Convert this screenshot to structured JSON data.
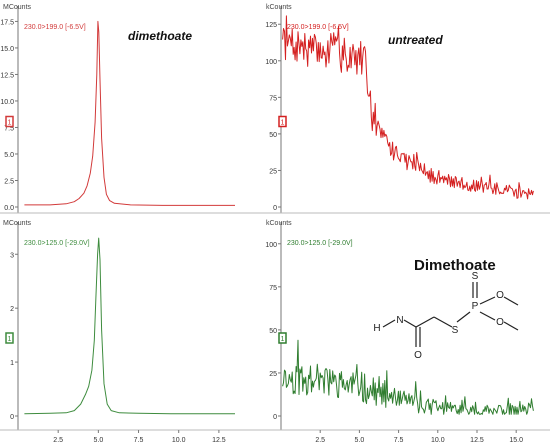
{
  "chart_data": [
    {
      "type": "line",
      "position": "top-left",
      "y_unit": "MCounts",
      "channel": "230.0>199.0 [-6.5V]",
      "marker": "1",
      "annotation": "dimethoate",
      "color": "#d23a3a",
      "xlim": [
        0,
        14
      ],
      "ylim": [
        0,
        18.2
      ],
      "x_ticks": [],
      "y_ticks": [
        0.0,
        2.5,
        5.0,
        7.5,
        10.0,
        12.5,
        15.0,
        17.5
      ],
      "y_tick_labels": [
        "0.0",
        "2.5",
        "5.0",
        "7.5",
        "10.0",
        "12.5",
        "15.0",
        "17.5"
      ],
      "x": [
        0.4,
        2.0,
        3.0,
        3.5,
        3.8,
        4.1,
        4.3,
        4.5,
        4.65,
        4.8,
        4.9,
        4.97,
        5.03,
        5.1,
        5.2,
        5.35,
        5.5,
        5.7,
        6.0,
        7.0,
        9.0,
        11.0,
        13.5
      ],
      "y": [
        0.2,
        0.2,
        0.3,
        0.5,
        0.8,
        1.3,
        2.0,
        3.2,
        4.8,
        8.0,
        12.5,
        17.5,
        16.5,
        12.0,
        6.5,
        2.8,
        1.2,
        0.6,
        0.35,
        0.2,
        0.15,
        0.15,
        0.15
      ]
    },
    {
      "type": "line",
      "position": "top-right",
      "y_unit": "kCounts",
      "channel": "230.0>199.0 [-6.5V]",
      "marker": "1",
      "annotation": "untreated",
      "color": "#d42020",
      "xlim": [
        0,
        16.2
      ],
      "ylim": [
        0,
        132
      ],
      "x_ticks": [],
      "y_ticks": [
        0,
        25,
        50,
        75,
        100,
        125
      ],
      "y_tick_labels": [
        "0",
        "25",
        "50",
        "75",
        "100",
        "125"
      ],
      "segments": [
        [
          0.1,
          112
        ],
        [
          3.0,
          105
        ],
        [
          5.3,
          102
        ],
        [
          5.8,
          62
        ],
        [
          6.8,
          40
        ],
        [
          8.0,
          32
        ],
        [
          9.5,
          22
        ],
        [
          11.0,
          17
        ],
        [
          12.5,
          14
        ],
        [
          14.0,
          12
        ],
        [
          16.1,
          8
        ]
      ],
      "noise_amplitude": 12,
      "noise_seed": 7
    },
    {
      "type": "line",
      "position": "bottom-left",
      "y_unit": "MCounts",
      "channel": "230.0>125.0 [-29.0V]",
      "marker": "1",
      "color": "#3e8c3e",
      "xlim": [
        0,
        14
      ],
      "ylim": [
        0,
        3.45
      ],
      "x_ticks": [
        2.5,
        5.0,
        7.5,
        10.0,
        12.5
      ],
      "x_tick_labels": [
        "2.5",
        "5.0",
        "7.5",
        "10.0",
        "12.5"
      ],
      "y_ticks": [
        0,
        1,
        2,
        3
      ],
      "y_tick_labels": [
        "0",
        "1",
        "2",
        "3"
      ],
      "x": [
        0.4,
        2.0,
        3.0,
        3.5,
        3.9,
        4.2,
        4.4,
        4.6,
        4.75,
        4.85,
        4.95,
        5.02,
        5.1,
        5.2,
        5.35,
        5.55,
        5.8,
        6.3,
        7.5,
        9.5,
        11.5,
        13.5
      ],
      "y": [
        0.04,
        0.05,
        0.06,
        0.1,
        0.22,
        0.4,
        0.55,
        0.85,
        1.4,
        2.2,
        3.0,
        3.3,
        2.9,
        1.6,
        0.6,
        0.22,
        0.1,
        0.06,
        0.05,
        0.04,
        0.04,
        0.04
      ]
    },
    {
      "type": "line",
      "position": "bottom-right",
      "y_unit": "kCounts",
      "channel": "230.0>125.0 [-29.0V]",
      "marker": "1",
      "annotation": "Dimethoate",
      "color": "#2f7d2f",
      "xlim": [
        0,
        16.2
      ],
      "ylim": [
        0,
        108
      ],
      "x_ticks": [
        2.5,
        5.0,
        7.5,
        10.0,
        12.5,
        15.0
      ],
      "x_tick_labels": [
        "2.5",
        "5.0",
        "7.5",
        "10.0",
        "12.5",
        "15.0"
      ],
      "y_ticks": [
        0,
        25,
        50,
        75,
        100
      ],
      "y_tick_labels": [
        "0",
        "25",
        "50",
        "75",
        "100"
      ],
      "segments": [
        [
          0.1,
          22
        ],
        [
          2.0,
          20
        ],
        [
          4.5,
          18
        ],
        [
          6.0,
          14
        ],
        [
          7.5,
          9
        ],
        [
          9.0,
          6
        ],
        [
          11.0,
          4
        ],
        [
          13.0,
          3
        ],
        [
          16.1,
          3
        ]
      ],
      "noise_amplitude": 9,
      "noise_seed": 11,
      "spikes": [
        [
          1.1,
          44
        ],
        [
          2.3,
          30
        ],
        [
          3.1,
          27
        ],
        [
          4.6,
          25
        ],
        [
          8.6,
          20
        ],
        [
          12.4,
          8
        ],
        [
          16.0,
          10
        ]
      ]
    }
  ],
  "structure": {
    "labels": {
      "methylamine_h": "H",
      "amide_n": "N",
      "carbonyl_o": "O",
      "thioether_s": "S",
      "phosphorus": "P",
      "thiono_s": "S",
      "ester_o_upper": "O",
      "ester_o_lower": "O"
    }
  }
}
